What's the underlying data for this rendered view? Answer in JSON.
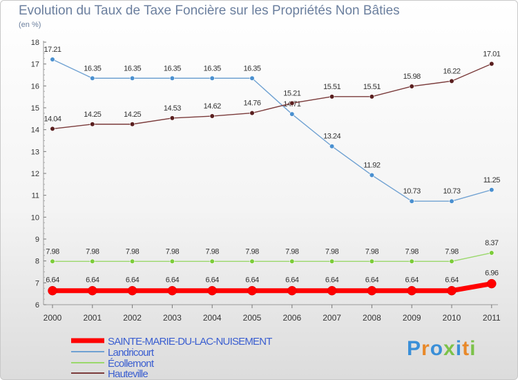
{
  "title": "Evolution du Taux de Taxe Foncière sur les Propriétés Non Bâties",
  "unit": "(en %)",
  "logo_text": "Proxiti",
  "chart_data": {
    "type": "line",
    "title": "Evolution du Taux de Taxe Foncière sur les Propriétés Non Bâties",
    "ylabel": "(en %)",
    "xlabel": "",
    "ylim": [
      6,
      18
    ],
    "yticks": [
      "6",
      "7",
      "8",
      "9",
      "10",
      "11",
      "12",
      "13",
      "14",
      "15",
      "16",
      "17",
      "18"
    ],
    "grid": false,
    "legend_position": "bottom-left",
    "categories": [
      "2000",
      "2001",
      "2002",
      "2003",
      "2004",
      "2005",
      "2006",
      "2007",
      "2008",
      "2009",
      "2010",
      "2011"
    ],
    "series": [
      {
        "name": "SAINTE-MARIE-DU-LAC-NUISEMENT",
        "color": "#ff0000",
        "values": [
          6.64,
          6.64,
          6.64,
          6.64,
          6.64,
          6.64,
          6.64,
          6.64,
          6.64,
          6.64,
          6.64,
          6.96
        ],
        "labels": [
          "6.64",
          "6.64",
          "6.64",
          "6.64",
          "6.64",
          "6.64",
          "6.64",
          "6.64",
          "6.64",
          "6.64",
          "6.64",
          "6.96"
        ]
      },
      {
        "name": "Landricourt",
        "color": "#6fa1d2",
        "values": [
          17.21,
          16.35,
          16.35,
          16.35,
          16.35,
          16.35,
          14.71,
          13.24,
          11.92,
          10.73,
          10.73,
          11.25
        ],
        "labels": [
          "17.21",
          "16.35",
          "16.35",
          "16.35",
          "16.35",
          "16.35",
          "14.71",
          "13.24",
          "11.92",
          "10.73",
          "10.73",
          "11.25"
        ]
      },
      {
        "name": "Écollemont",
        "color": "#9ad86b",
        "values": [
          7.98,
          7.98,
          7.98,
          7.98,
          7.98,
          7.98,
          7.98,
          7.98,
          7.98,
          7.98,
          7.98,
          8.37
        ],
        "labels": [
          "7.98",
          "7.98",
          "7.98",
          "7.98",
          "7.98",
          "7.98",
          "7.98",
          "7.98",
          "7.98",
          "7.98",
          "7.98",
          "8.37"
        ]
      },
      {
        "name": "Hauteville",
        "color": "#7a3a3a",
        "values": [
          14.04,
          14.25,
          14.25,
          14.53,
          14.62,
          14.76,
          15.21,
          15.51,
          15.51,
          15.98,
          16.22,
          17.01
        ],
        "labels": [
          "14.04",
          "14.25",
          "14.25",
          "14.53",
          "14.62",
          "14.76",
          "15.21",
          "15.51",
          "15.51",
          "15.98",
          "16.22",
          "17.01"
        ]
      }
    ]
  }
}
